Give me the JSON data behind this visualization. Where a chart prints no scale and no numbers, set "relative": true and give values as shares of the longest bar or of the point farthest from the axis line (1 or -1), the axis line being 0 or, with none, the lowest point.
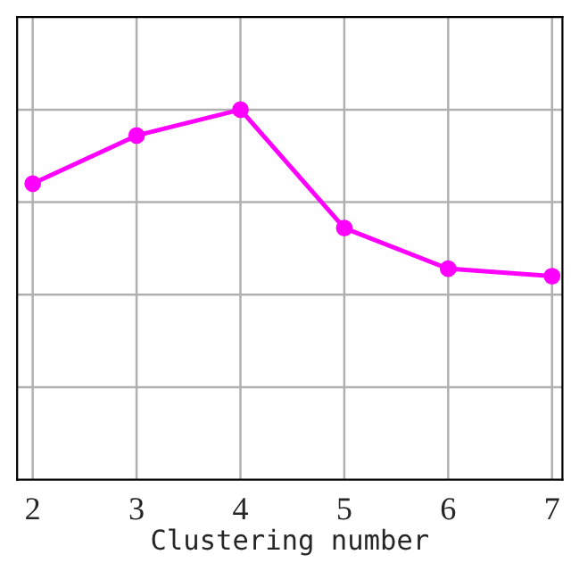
{
  "chart_data": {
    "type": "line",
    "xlabel": "Clustering number",
    "categories": [
      "2",
      "3",
      "4",
      "5",
      "6",
      "7"
    ],
    "series": [
      {
        "color": "#ff00ff",
        "values": [
          0.8,
          0.93,
          1,
          0.68,
          0.57,
          0.55
        ]
      }
    ],
    "relative": true,
    "grid": true,
    "marker": "circle",
    "line_style": "solid"
  }
}
